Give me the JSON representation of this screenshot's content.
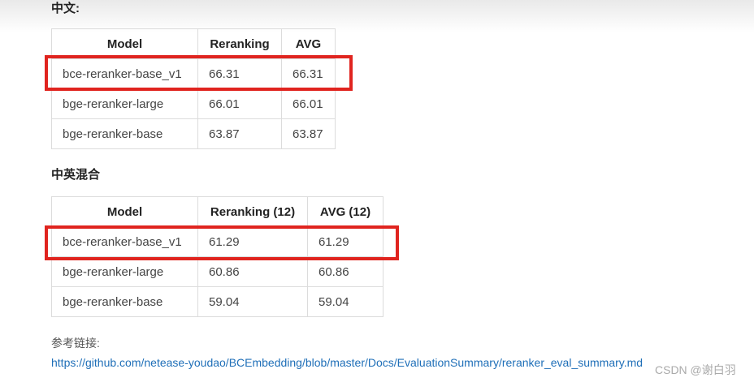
{
  "sections": [
    {
      "heading": "中文:",
      "table": {
        "header": [
          "Model",
          "Reranking",
          "AVG"
        ],
        "rows": [
          [
            "bce-reranker-base_v1",
            "66.31",
            "66.31"
          ],
          [
            "bge-reranker-large",
            "66.01",
            "66.01"
          ],
          [
            "bge-reranker-base",
            "63.87",
            "63.87"
          ]
        ]
      }
    },
    {
      "heading": "中英混合",
      "table": {
        "header": [
          "Model",
          "Reranking (12)",
          "AVG (12)"
        ],
        "rows": [
          [
            "bce-reranker-base_v1",
            "61.29",
            "61.29"
          ],
          [
            "bge-reranker-large",
            "60.86",
            "60.86"
          ],
          [
            "bge-reranker-base",
            "59.04",
            "59.04"
          ]
        ]
      }
    }
  ],
  "reference": {
    "label": "参考链接:",
    "url": "https://github.com/netease-youdao/BCEmbedding/blob/master/Docs/EvaluationSummary/reranker_eval_summary.md"
  },
  "watermark": "CSDN @谢白羽"
}
